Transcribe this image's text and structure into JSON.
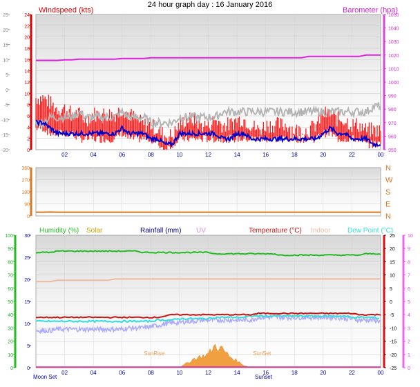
{
  "title": "24 hour graph day : 16 January 2016",
  "colors": {
    "windspeed": "#dd0000",
    "gust": "#ff1a1a",
    "wind_avg": "#0000cc",
    "wind_dir_avg": "#b4b4b4",
    "barometer": "#dd22dd",
    "direction": "#dd7722",
    "humidity": "#22bb22",
    "solar": "#f0a040",
    "rainfall": "#000088",
    "uv": "#dd88dd",
    "temperature": "#cc1111",
    "indoor": "#f0b8a0",
    "dewpoint": "#33dddd",
    "extra": "#aaaaff"
  },
  "x_ticks": [
    "02",
    "04",
    "06",
    "08",
    "10",
    "12",
    "14",
    "16",
    "18",
    "20",
    "22",
    "00"
  ],
  "chart_data": [
    {
      "type": "line",
      "name": "wind-barometer",
      "legend": {
        "left": "Windspeed (kts)",
        "right": "Barometer (hpa)"
      },
      "y_left_ticks": [
        "24",
        "22",
        "20",
        "18",
        "16",
        "14",
        "12",
        "10",
        "8",
        "6",
        "4",
        "2",
        "0"
      ],
      "y_left_outer_ticks": [
        "25",
        "20",
        "15",
        "10",
        "5",
        "0",
        "-5",
        "-10",
        "-15",
        "-20"
      ],
      "y_right_ticks": [
        "1050",
        "1040",
        "1030",
        "1020",
        "1010",
        "1000",
        "990",
        "980",
        "970",
        "960",
        "950"
      ],
      "ylim_left": [
        0,
        25
      ],
      "ylim_right": [
        950,
        1050
      ],
      "x_hours": [
        0.0,
        0.5,
        1.0,
        1.5,
        2.0,
        2.5,
        3.0,
        3.5,
        4.0,
        4.5,
        5.0,
        5.5,
        6.0,
        6.5,
        7.0,
        7.5,
        8.0,
        8.5,
        9.0,
        9.5,
        10.0,
        10.5,
        11.0,
        11.5,
        12.0,
        12.5,
        13.0,
        13.5,
        14.0,
        14.5,
        15.0,
        15.5,
        16.0,
        16.5,
        17.0,
        17.5,
        18.0,
        18.5,
        19.0,
        19.5,
        20.0,
        20.5,
        21.0,
        21.5,
        22.0,
        22.5,
        23.0,
        23.5,
        24.0
      ],
      "series": [
        {
          "name": "wind_max",
          "values": [
            9,
            9,
            8,
            7,
            7,
            6,
            6,
            5,
            6,
            6,
            6,
            6,
            7,
            6,
            5,
            4,
            4,
            3,
            2,
            2,
            4,
            5,
            5,
            4,
            4,
            5,
            4,
            4,
            5,
            5,
            4,
            3,
            4,
            4,
            4,
            4,
            3,
            3,
            3,
            4,
            6,
            6,
            5,
            5,
            4,
            4,
            3,
            3,
            3
          ]
        },
        {
          "name": "wind_min",
          "values": [
            4,
            4,
            3,
            3,
            3,
            3,
            2,
            2,
            2,
            2,
            2,
            2,
            3,
            2,
            2,
            2,
            2,
            1,
            0,
            1,
            2,
            2,
            2,
            2,
            2,
            2,
            2,
            2,
            2,
            2,
            2,
            2,
            2,
            2,
            2,
            2,
            2,
            2,
            2,
            2,
            3,
            3,
            2,
            2,
            2,
            2,
            1,
            1,
            1
          ]
        },
        {
          "name": "wind_avg",
          "values": [
            5,
            5,
            4,
            3,
            3,
            3,
            3,
            3,
            3,
            3,
            3,
            3,
            4,
            3,
            3,
            3,
            2,
            2,
            1,
            1,
            3,
            3,
            3,
            3,
            3,
            3,
            2,
            2,
            3,
            3,
            2,
            2,
            2,
            2,
            2,
            2,
            2,
            2,
            2,
            2,
            3,
            4,
            3,
            3,
            2,
            2,
            2,
            1,
            1
          ]
        },
        {
          "name": "wind_dir_avg",
          "values": [
            5,
            5,
            6,
            6,
            6,
            6,
            7,
            6,
            6,
            6,
            6,
            6,
            7,
            6,
            6,
            6,
            5,
            5,
            5,
            5,
            6,
            6,
            6,
            6,
            6,
            6,
            7,
            7,
            7,
            7,
            7,
            7,
            7,
            7,
            7,
            7,
            7,
            7,
            7,
            7,
            7,
            7,
            7,
            7,
            7,
            7,
            7,
            8,
            8
          ]
        },
        {
          "name": "barometer",
          "values": [
            1016,
            1016,
            1016,
            1016,
            1016.5,
            1016.5,
            1017,
            1017,
            1017,
            1017,
            1017,
            1017,
            1017.5,
            1017.5,
            1017.5,
            1017.5,
            1018,
            1018,
            1018,
            1018,
            1018,
            1018,
            1018,
            1018,
            1018,
            1018,
            1018,
            1018,
            1018,
            1018,
            1018,
            1018,
            1018,
            1018,
            1018,
            1018,
            1018,
            1018,
            1019,
            1019,
            1019,
            1019,
            1019,
            1019,
            1019,
            1019,
            1020,
            1020,
            1020
          ]
        }
      ]
    },
    {
      "type": "line",
      "name": "wind-direction",
      "y_left_ticks": [
        "360",
        "270",
        "180",
        "90",
        "0"
      ],
      "y_right_ticks": [
        "N",
        "W",
        "S",
        "E",
        "N"
      ],
      "ylim": [
        0,
        360
      ],
      "series": [
        {
          "name": "direction",
          "values": [
            28,
            28,
            29,
            28,
            28,
            28,
            28,
            28,
            28,
            28,
            28,
            28,
            28,
            28,
            28,
            28,
            28,
            28,
            28,
            28,
            28,
            28,
            28,
            28,
            28,
            28,
            28,
            28,
            28,
            28,
            28,
            28,
            28,
            28,
            28,
            28,
            28,
            28,
            28,
            28,
            28,
            28,
            28,
            28,
            28,
            28,
            28,
            28,
            28
          ]
        }
      ]
    },
    {
      "type": "line",
      "name": "climate",
      "legend": [
        {
          "label": "Humidity (%)",
          "color": "#22bb22"
        },
        {
          "label": "Solar",
          "color": "#c8a000"
        },
        {
          "label": "Rainfall (mm)",
          "color": "#000088"
        },
        {
          "label": "UV",
          "color": "#dd88dd"
        },
        {
          "label": "Temperature (°C)",
          "color": "#cc1111"
        },
        {
          "label": "Indoor",
          "color": "#f0b8a0"
        },
        {
          "label": "Dew Point (°C)",
          "color": "#33dddd"
        }
      ],
      "y_humidity_ticks": [
        "100",
        "90",
        "80",
        "70",
        "60",
        "50",
        "40",
        "30",
        "20",
        "10",
        "0"
      ],
      "y_rain_ticks": [
        "30",
        "25",
        "20",
        "15",
        "10",
        "5",
        "0"
      ],
      "y_temp_ticks": [
        "25",
        "20",
        "15",
        "10",
        "5",
        "0",
        "-5",
        "-10",
        "-15",
        "-20",
        "-25"
      ],
      "y_uv_ticks": [
        "10",
        "9",
        "8",
        "7",
        "6",
        "5",
        "4",
        "3",
        "2",
        "1",
        "0"
      ],
      "ylim_humidity": [
        0,
        100
      ],
      "ylim_temp": [
        -25,
        25
      ],
      "annotations": [
        "Moon Set",
        "SunRise",
        "SunSet",
        "Sunset"
      ],
      "series": [
        {
          "name": "humidity",
          "values": [
            87,
            87,
            87,
            88,
            88,
            88,
            88,
            88,
            88,
            88,
            88,
            88,
            88,
            88,
            88,
            87,
            87,
            87,
            87,
            87,
            87,
            87,
            87,
            87,
            87,
            86,
            86,
            86,
            86,
            86,
            86,
            86,
            86,
            86,
            85,
            85,
            85,
            85,
            85,
            85,
            85,
            85,
            85,
            85,
            85,
            85,
            86,
            86,
            86
          ]
        },
        {
          "name": "temperature",
          "values": [
            -6,
            -6,
            -6,
            -6,
            -6,
            -6,
            -6,
            -6,
            -6,
            -6,
            -6,
            -6,
            -6,
            -6,
            -6,
            -6,
            -6,
            -6,
            -5.5,
            -5,
            -5,
            -5,
            -5,
            -5,
            -5,
            -5,
            -5,
            -5,
            -5,
            -5,
            -5,
            -4.5,
            -4.5,
            -4.5,
            -4.5,
            -4.5,
            -4.5,
            -4.5,
            -4.5,
            -4.5,
            -4.5,
            -4.5,
            -4.5,
            -4.5,
            -4.5,
            -5,
            -5,
            -5,
            -5
          ]
        },
        {
          "name": "dewpoint",
          "values": [
            -7.5,
            -7.5,
            -7.5,
            -7.5,
            -7.5,
            -7.5,
            -7.5,
            -7.5,
            -7.5,
            -7.5,
            -7.5,
            -7.5,
            -7.5,
            -7.5,
            -7.5,
            -7.5,
            -7.5,
            -7,
            -7,
            -7,
            -6.5,
            -6.5,
            -6.5,
            -6.5,
            -6.5,
            -6,
            -6,
            -6,
            -6,
            -6,
            -5.5,
            -5.5,
            -5.5,
            -5.5,
            -5.5,
            -5.5,
            -5.5,
            -5.5,
            -5.5,
            -5.5,
            -5.5,
            -5.5,
            -5.5,
            -5.5,
            -6,
            -6,
            -6,
            -6,
            -6.5
          ]
        },
        {
          "name": "indoor",
          "values": [
            7.5,
            7.5,
            7.5,
            8,
            8,
            8,
            8,
            8,
            8,
            8,
            8,
            8.5,
            8.5,
            8.5,
            8.5,
            8.5,
            8.5,
            8.5,
            8.5,
            8.5,
            8.5,
            8.5,
            8.5,
            8.5,
            8.5,
            8.5,
            8.5,
            8.5,
            8.5,
            8.5,
            8.5,
            8.5,
            8.5,
            8.5,
            8.5,
            8.5,
            8.5,
            8.5,
            8.5,
            8.5,
            8.5,
            8.5,
            8.5,
            8.5,
            8.5,
            8.5,
            8.5,
            8.5,
            8.5
          ]
        },
        {
          "name": "extra",
          "values": [
            -11,
            -11,
            -11,
            -10.5,
            -10.5,
            -10.5,
            -10.5,
            -10.5,
            -10.5,
            -10.5,
            -10.5,
            -10.5,
            -10.5,
            -10,
            -10,
            -10,
            -9.5,
            -9,
            -8.5,
            -8,
            -8,
            -7.5,
            -7.5,
            -7,
            -7,
            -7,
            -7,
            -7,
            -7,
            -7,
            -7,
            -6,
            -6,
            -6,
            -6,
            -6,
            -6,
            -6,
            -6,
            -6,
            -6,
            -6,
            -6,
            -6.5,
            -6.5,
            -7,
            -7,
            -7,
            -7.5
          ]
        },
        {
          "name": "solar",
          "values": [
            0,
            0,
            0,
            0,
            0,
            0,
            0,
            0,
            0,
            0,
            0,
            0,
            0,
            0,
            0,
            0,
            0,
            0,
            0,
            0,
            0,
            1,
            2,
            2.5,
            3,
            5,
            4,
            2.5,
            1.5,
            0.5,
            0,
            0,
            0,
            0,
            0,
            0,
            0,
            0,
            0,
            0,
            0,
            0,
            0,
            0,
            0,
            0,
            0,
            0,
            0
          ]
        }
      ]
    }
  ]
}
